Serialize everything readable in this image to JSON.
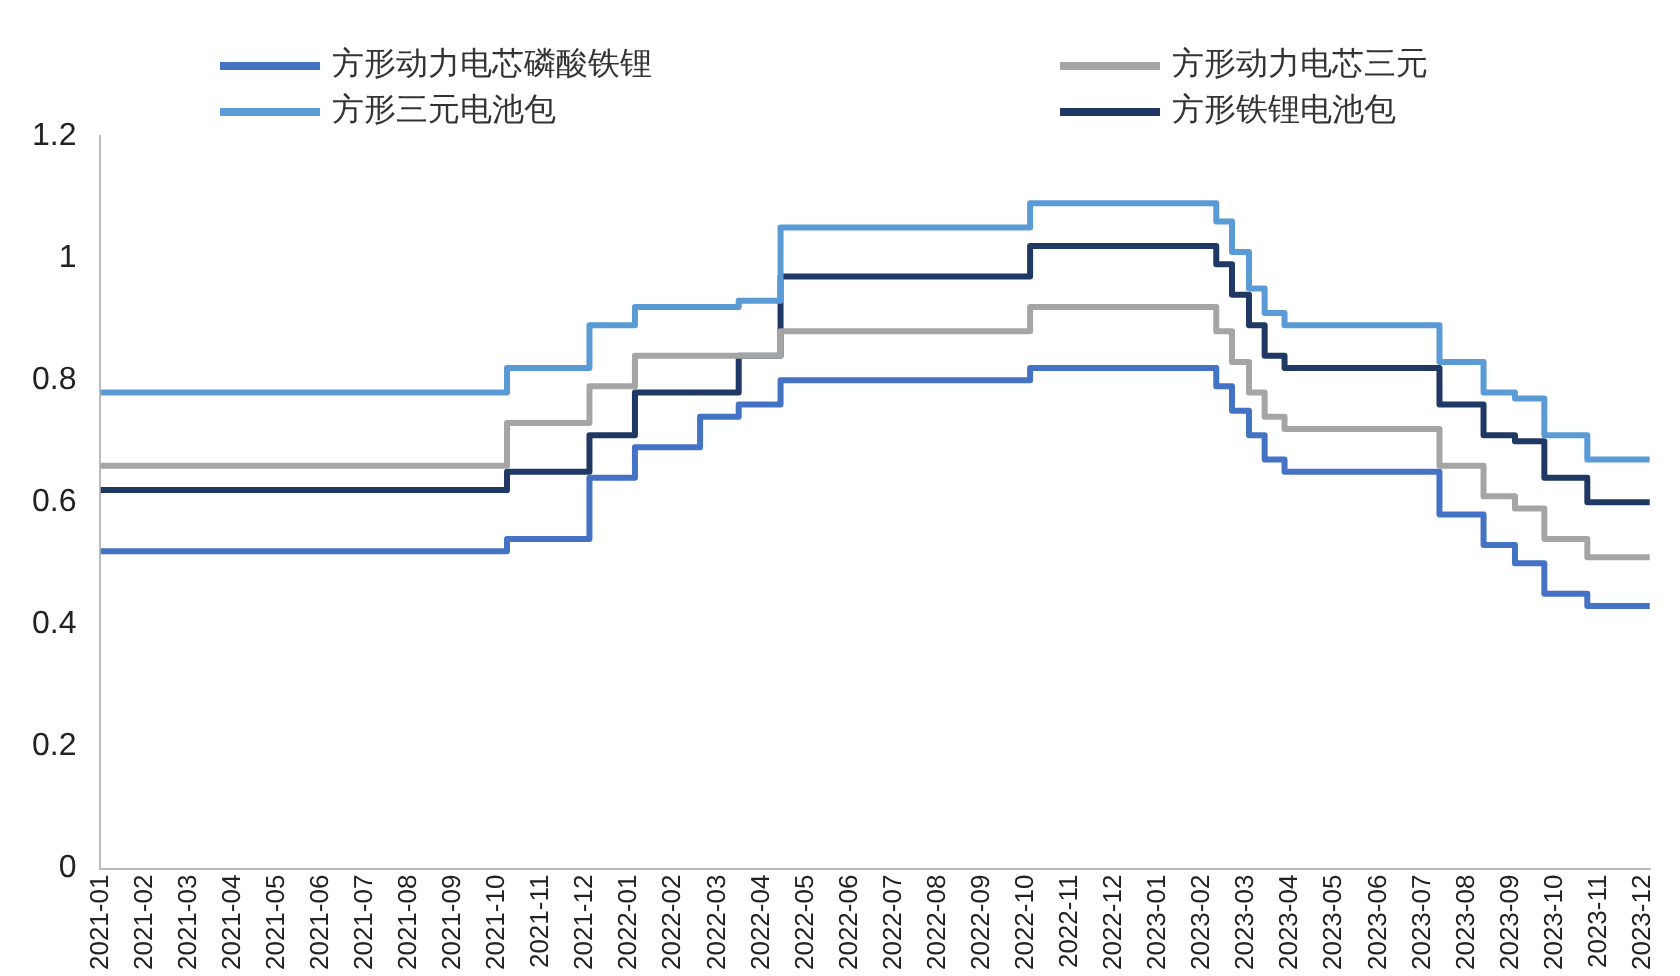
{
  "chart_data": {
    "type": "step",
    "legend": "top",
    "grid": false,
    "ylim": [
      0,
      1.2
    ],
    "yticks": [
      0,
      0.2,
      0.4,
      0.6,
      0.8,
      1,
      1.2
    ],
    "xlim": [
      "2021-01-01",
      "2023-12-06"
    ],
    "xticks": [
      {
        "value": "2021-01",
        "label": "2021-01"
      },
      {
        "value": "2021-02",
        "label": "2021-02"
      },
      {
        "value": "2021-03",
        "label": "2021-03"
      },
      {
        "value": "2021-04",
        "label": "2021-04"
      },
      {
        "value": "2021-05",
        "label": "2021-05"
      },
      {
        "value": "2021-06",
        "label": "2021-06"
      },
      {
        "value": "2021-07",
        "label": "2021-07"
      },
      {
        "value": "2021-08",
        "label": "2021-08"
      },
      {
        "value": "2021-09",
        "label": "2021-09"
      },
      {
        "value": "2021-10",
        "label": "2021-10"
      },
      {
        "value": "2021-11",
        "label": "2021-11"
      },
      {
        "value": "2021-12",
        "label": "2021-12"
      },
      {
        "value": "2022-01",
        "label": "2022-01"
      },
      {
        "value": "2022-02",
        "label": "2022-02"
      },
      {
        "value": "2022-03",
        "label": "2022-03"
      },
      {
        "value": "2022-04",
        "label": "2022-04"
      },
      {
        "value": "2022-05",
        "label": "2022-05"
      },
      {
        "value": "2022-06",
        "label": "2022-06"
      },
      {
        "value": "2022-07",
        "label": "2022-07"
      },
      {
        "value": "2022-08",
        "label": "2022-08"
      },
      {
        "value": "2022-09",
        "label": "2022-09"
      },
      {
        "value": "2022-10",
        "label": "2022-10"
      },
      {
        "value": "2022-11",
        "label": "2022-11"
      },
      {
        "value": "2022-12",
        "label": "2022-12"
      },
      {
        "value": "2023-01",
        "label": "2023-01"
      },
      {
        "value": "2023-02",
        "label": "2023-02"
      },
      {
        "value": "2023-03",
        "label": "2023-03"
      },
      {
        "value": "2023-04",
        "label": "2023-04"
      },
      {
        "value": "2023-05",
        "label": "2023-05"
      },
      {
        "value": "2023-06",
        "label": "2023-06"
      },
      {
        "value": "2023-07",
        "label": "2023-07"
      },
      {
        "value": "2023-08",
        "label": "2023-08"
      },
      {
        "value": "2023-09",
        "label": "2023-09"
      },
      {
        "value": "2023-10",
        "label": "2023-10"
      },
      {
        "value": "2023-11",
        "label": "2023-11"
      },
      {
        "value": "2023-12",
        "label": "2023-12"
      }
    ],
    "series": [
      {
        "name": "方形动力电芯磷酸铁锂",
        "color": "#4472c4",
        "x": [
          "2021-01-01",
          "2021-10-08",
          "2021-12-04",
          "2022-01-05",
          "2022-02-18",
          "2022-03-16",
          "2022-04-14",
          "2022-10-04",
          "2023-02-10",
          "2023-02-20",
          "2023-03-03",
          "2023-03-14",
          "2023-03-28",
          "2023-07-13",
          "2023-08-13",
          "2023-09-04",
          "2023-09-24",
          "2023-10-24",
          "2023-12-06"
        ],
        "values": [
          0.52,
          0.54,
          0.64,
          0.69,
          0.74,
          0.76,
          0.8,
          0.82,
          0.79,
          0.75,
          0.71,
          0.67,
          0.65,
          0.58,
          0.53,
          0.5,
          0.45,
          0.43,
          0.43
        ]
      },
      {
        "name": "方形动力电芯三元",
        "color": "#a5a5a5",
        "x": [
          "2021-01-01",
          "2021-10-08",
          "2021-12-04",
          "2022-01-05",
          "2022-04-14",
          "2022-10-04",
          "2023-02-10",
          "2023-02-20",
          "2023-03-03",
          "2023-03-14",
          "2023-03-28",
          "2023-07-13",
          "2023-08-13",
          "2023-09-04",
          "2023-09-24",
          "2023-10-24",
          "2023-12-06"
        ],
        "values": [
          0.66,
          0.73,
          0.79,
          0.84,
          0.88,
          0.92,
          0.88,
          0.83,
          0.78,
          0.74,
          0.72,
          0.66,
          0.61,
          0.59,
          0.54,
          0.51,
          0.51
        ]
      },
      {
        "name": "方形三元电池包",
        "color": "#5b9bd5",
        "x": [
          "2021-01-01",
          "2021-10-08",
          "2021-12-04",
          "2022-01-05",
          "2022-03-16",
          "2022-04-14",
          "2022-10-04",
          "2023-02-10",
          "2023-02-20",
          "2023-03-03",
          "2023-03-14",
          "2023-03-28",
          "2023-07-13",
          "2023-08-13",
          "2023-09-04",
          "2023-09-24",
          "2023-10-24",
          "2023-12-06"
        ],
        "values": [
          0.78,
          0.82,
          0.89,
          0.92,
          0.93,
          1.05,
          1.09,
          1.06,
          1.01,
          0.95,
          0.91,
          0.89,
          0.83,
          0.78,
          0.77,
          0.71,
          0.67,
          0.67
        ]
      },
      {
        "name": "方形铁锂电池包",
        "color": "#203864",
        "x": [
          "2021-01-01",
          "2021-10-08",
          "2021-12-04",
          "2022-01-05",
          "2022-03-16",
          "2022-04-14",
          "2022-10-04",
          "2023-02-10",
          "2023-02-20",
          "2023-03-03",
          "2023-03-14",
          "2023-03-28",
          "2023-07-13",
          "2023-08-13",
          "2023-09-04",
          "2023-09-24",
          "2023-10-24",
          "2023-12-06"
        ],
        "values": [
          0.62,
          0.65,
          0.71,
          0.78,
          0.84,
          0.97,
          1.02,
          0.99,
          0.94,
          0.89,
          0.84,
          0.82,
          0.76,
          0.71,
          0.7,
          0.64,
          0.6,
          0.6
        ]
      }
    ]
  }
}
